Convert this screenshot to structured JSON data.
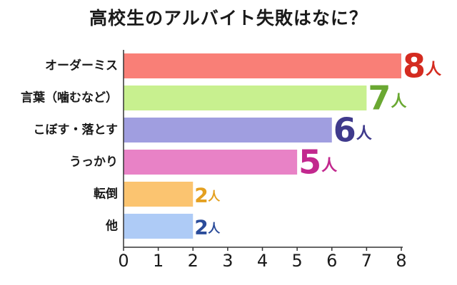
{
  "title": "高校生のアルバイト失敗はなに？",
  "unit": "人",
  "chart_data": {
    "type": "bar",
    "orientation": "horizontal",
    "title": "高校生のアルバイト失敗はなに？",
    "categories": [
      "オーダーミス",
      "言葉（噛むなど）",
      "こぼす・落とす",
      "うっかり",
      "転倒",
      "他"
    ],
    "values": [
      8,
      7,
      6,
      5,
      2,
      2
    ],
    "value_unit": "人",
    "xlim": [
      0,
      8
    ],
    "xticks": [
      "0",
      "1",
      "2",
      "3",
      "4",
      "5",
      "6",
      "7",
      "8"
    ],
    "grid": false,
    "legend": "none",
    "bar_colors": [
      "#f97f77",
      "#c8f08f",
      "#a09ee0",
      "#e882c6",
      "#fbc470",
      "#aecbf6"
    ],
    "label_colors": [
      "#d42b20",
      "#6aa832",
      "#3f3a8c",
      "#c2288e",
      "#e4a020",
      "#2b4c9a"
    ]
  }
}
